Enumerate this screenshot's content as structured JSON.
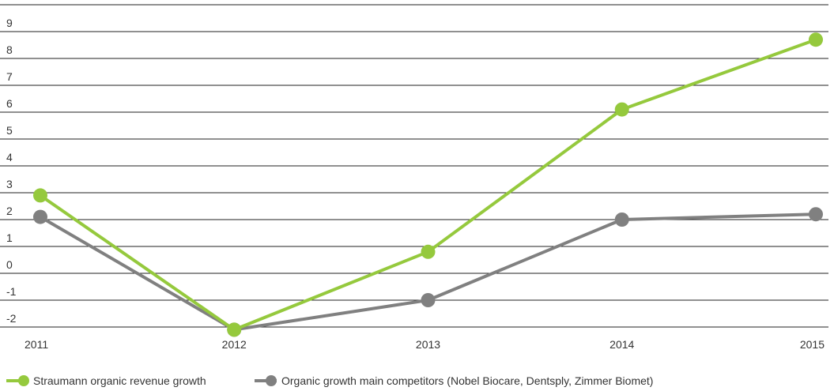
{
  "chart_data": {
    "type": "line",
    "x": [
      "2011",
      "2012",
      "2013",
      "2014",
      "2015"
    ],
    "y_ticks": [
      "-2",
      "-1",
      "0",
      "1",
      "2",
      "3",
      "4",
      "5",
      "6",
      "7",
      "8",
      "9"
    ],
    "ylim": [
      -2,
      9
    ],
    "grid": true,
    "legend_position": "bottom-left",
    "series": [
      {
        "name": "Straumann organic revenue growth",
        "color": "#95c93d",
        "values": [
          2.9,
          -2.1,
          0.8,
          6.1,
          8.7
        ]
      },
      {
        "name": "Organic growth main competitors (Nobel Biocare, Dentsply, Zimmer Biomet)",
        "color": "#808080",
        "values": [
          2.1,
          -2.1,
          -1.0,
          2.0,
          2.2
        ]
      }
    ]
  }
}
